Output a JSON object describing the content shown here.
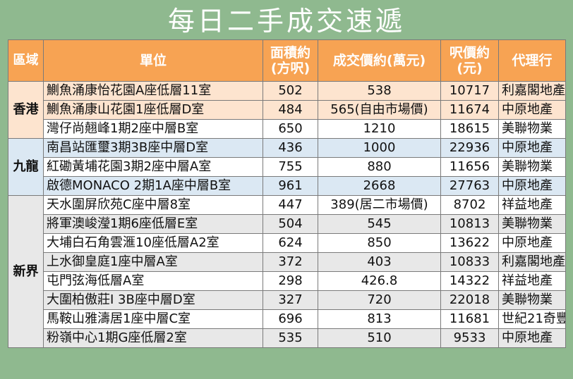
{
  "title": "每日二手成交速遞",
  "headers": {
    "region": "區域",
    "unit": "單位",
    "area": "面積約(方呎)",
    "price": "成交價約(萬元)",
    "psf": "呎價約(元)",
    "agent": "代理行"
  },
  "regions": {
    "hk": "香港",
    "kln": "九龍",
    "nt": "新界"
  },
  "rows": [
    {
      "unit": "鰂魚涌康怡花園A座低層11室",
      "area": "502",
      "price": "538",
      "psf": "10717",
      "agent": "利嘉閣地產"
    },
    {
      "unit": "鰂魚涌康山花園1座低層D室",
      "area": "484",
      "price": "565(自由市場價)",
      "psf": "11674",
      "agent": "中原地產"
    },
    {
      "unit": "灣仔尚翹峰1期2座中層B室",
      "area": "650",
      "price": "1210",
      "psf": "18615",
      "agent": "美聯物業"
    },
    {
      "unit": "南昌站匯璽3期3B座中層D室",
      "area": "436",
      "price": "1000",
      "psf": "22936",
      "agent": "中原地產"
    },
    {
      "unit": "紅磡黃埔花園3期2座中層A室",
      "area": "755",
      "price": "880",
      "psf": "11656",
      "agent": "美聯物業"
    },
    {
      "unit": "啟德MONACO 2期1A座中層B室",
      "area": "961",
      "price": "2668",
      "psf": "27763",
      "agent": "中原地產"
    },
    {
      "unit": "天水圍屏欣苑C座中層8室",
      "area": "447",
      "price": "389(居二市場價)",
      "psf": "8702",
      "agent": "祥益地產"
    },
    {
      "unit": "將軍澳峻瀅1期6座低層E室",
      "area": "504",
      "price": "545",
      "psf": "10813",
      "agent": "美聯物業"
    },
    {
      "unit": "大埔白石角雲滙10座低層A2室",
      "area": "624",
      "price": "850",
      "psf": "13622",
      "agent": "中原地產"
    },
    {
      "unit": "上水御皇庭1座中層A室",
      "area": "372",
      "price": "403",
      "psf": "10833",
      "agent": "利嘉閣地產"
    },
    {
      "unit": "屯門弦海低層A室",
      "area": "298",
      "price": "426.8",
      "psf": "14322",
      "agent": "祥益地產"
    },
    {
      "unit": "大圍柏傲莊I 3B座中層D室",
      "area": "327",
      "price": "720",
      "psf": "22018",
      "agent": "美聯物業"
    },
    {
      "unit": "馬鞍山雅濤居1座中層C室",
      "area": "696",
      "price": "813",
      "psf": "11681",
      "agent": "世紀21奇豐"
    },
    {
      "unit": "粉嶺中心1期G座低層2室",
      "area": "535",
      "price": "510",
      "psf": "9533",
      "agent": "中原地產"
    }
  ]
}
